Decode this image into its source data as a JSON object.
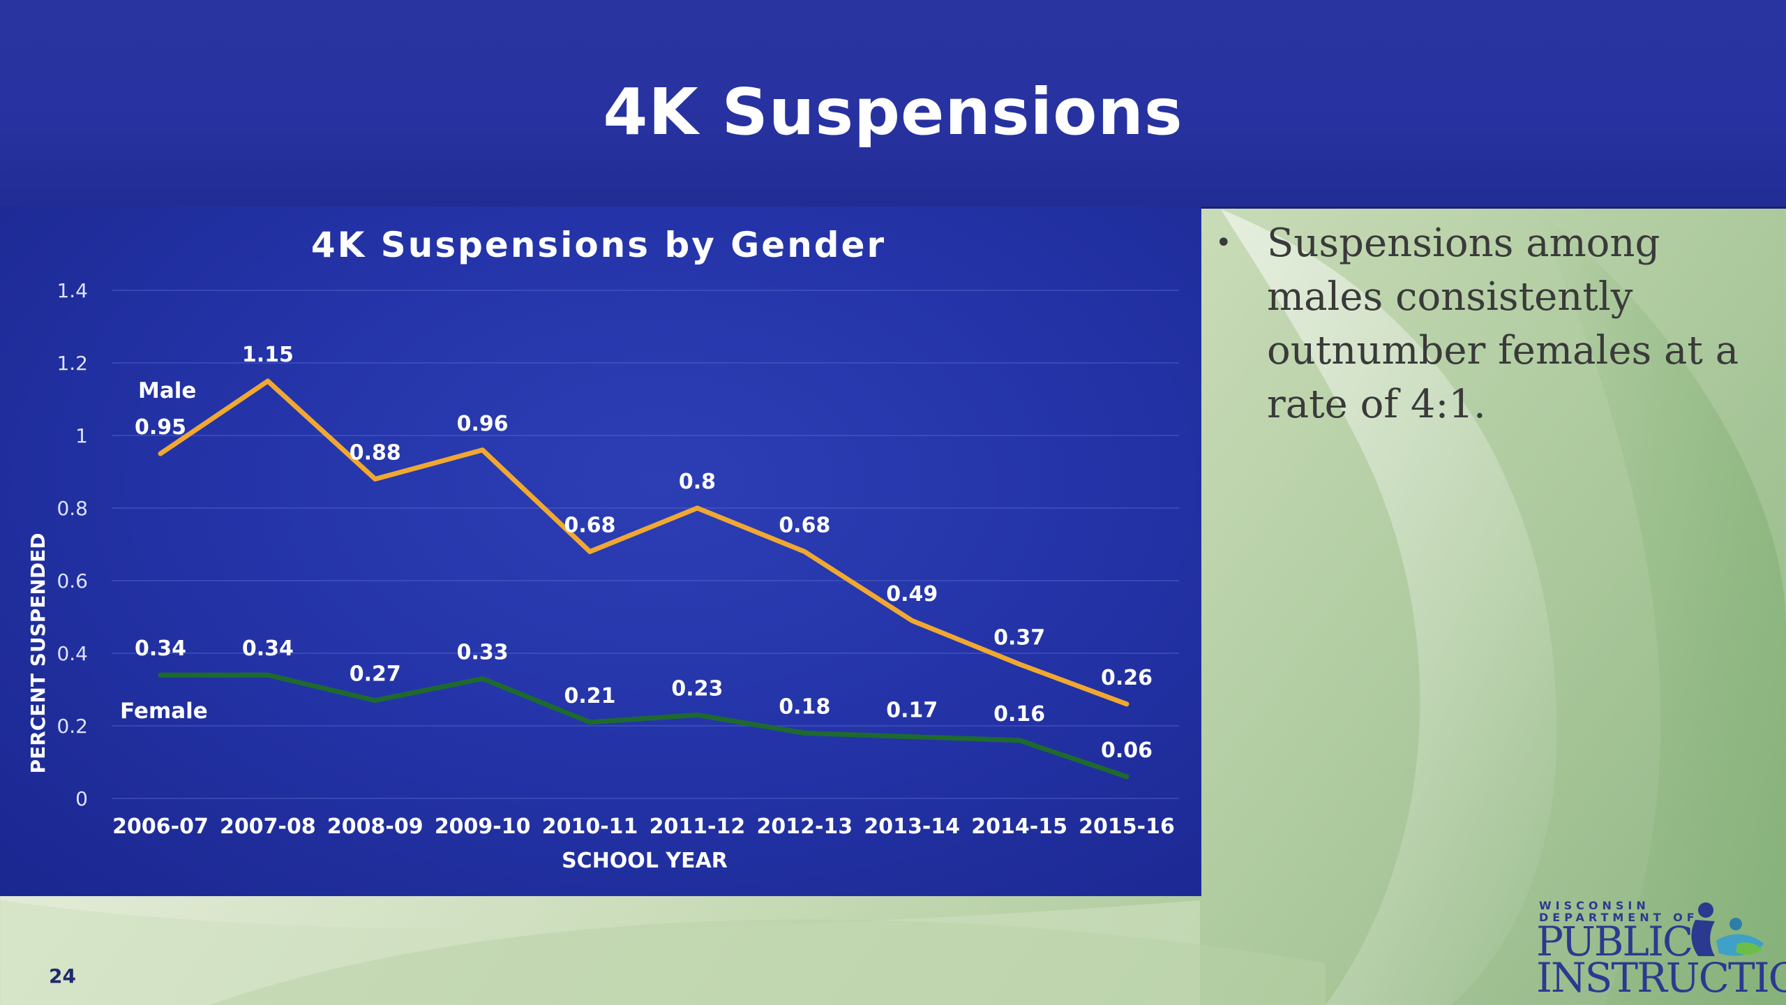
{
  "header": {
    "title": "4K Suspensions"
  },
  "bullet": {
    "text": "Suspensions among males consistently outnumber females at a rate of 4:1."
  },
  "footer": {
    "page_number": "24"
  },
  "logo": {
    "line1": "WISCONSIN",
    "line2": "DEPARTMENT OF",
    "line3": "PUBLIC",
    "line4": "INSTRUCTION"
  },
  "colors": {
    "male": "#f0a830",
    "female": "#1e6a2e",
    "header": "#2732a0"
  },
  "chart_data": {
    "type": "line",
    "title": "4K Suspensions by Gender",
    "xlabel": "SCHOOL YEAR",
    "ylabel": "PERCENT SUSPENDED",
    "ylim": [
      0,
      1.4
    ],
    "yticks": [
      0,
      0.2,
      0.4,
      0.6,
      0.8,
      1,
      1.2,
      1.4
    ],
    "ytick_labels": [
      "0",
      "0.2",
      "0.4",
      "0.6",
      "0.8",
      "1",
      "1.2",
      "1.4"
    ],
    "grid": true,
    "categories": [
      "2006-07",
      "2007-08",
      "2008-09",
      "2009-10",
      "2010-11",
      "2011-12",
      "2012-13",
      "2013-14",
      "2014-15",
      "2015-16"
    ],
    "series": [
      {
        "name": "Male",
        "color": "#f0a830",
        "values": [
          0.95,
          1.15,
          0.88,
          0.96,
          0.68,
          0.8,
          0.68,
          0.49,
          0.37,
          0.26
        ],
        "labels": [
          "0.95",
          "1.15",
          "0.88",
          "0.96",
          "0.68",
          "0.8",
          "0.68",
          "0.49",
          "0.37",
          "0.26"
        ]
      },
      {
        "name": "Female",
        "color": "#1e6a2e",
        "values": [
          0.34,
          0.34,
          0.27,
          0.33,
          0.21,
          0.23,
          0.18,
          0.17,
          0.16,
          0.06
        ],
        "labels": [
          "0.34",
          "0.34",
          "0.27",
          "0.33",
          "0.21",
          "0.23",
          "0.18",
          "0.17",
          "0.16",
          "0.06"
        ]
      }
    ]
  }
}
